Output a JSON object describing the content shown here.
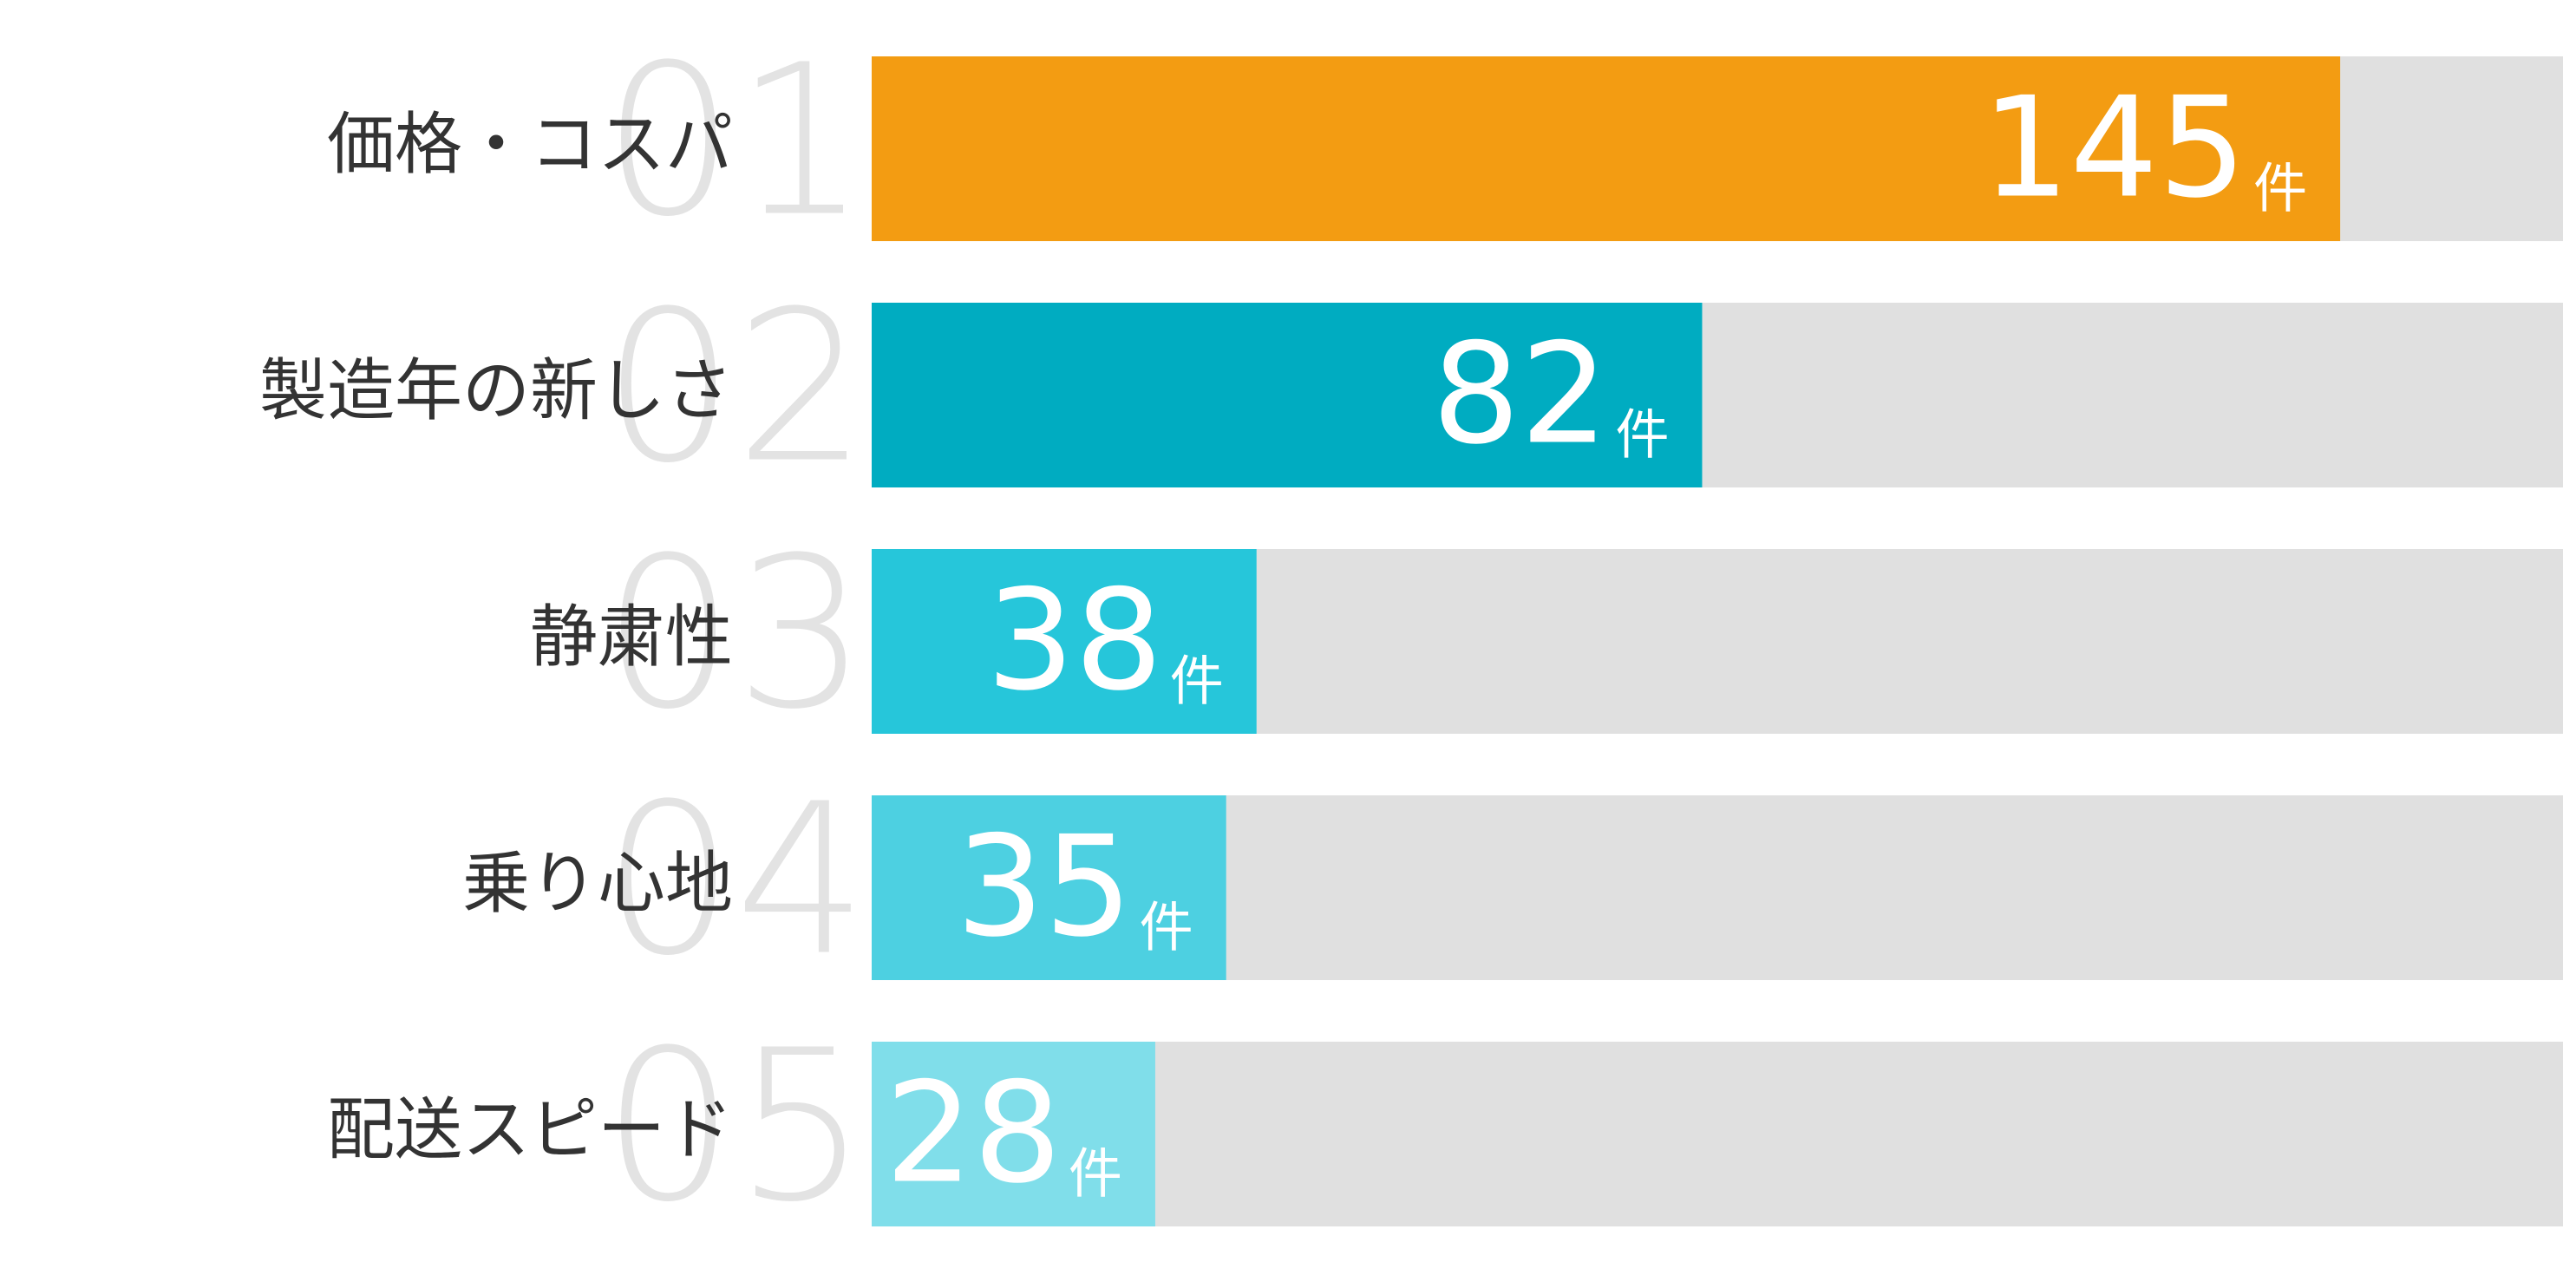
{
  "chart_data": {
    "type": "ranked-bar",
    "categories": [
      "価格・コスパ",
      "製造年の新しさ",
      "静粛性",
      "乗り心地",
      "配送スピード"
    ],
    "ranks": [
      "01",
      "02",
      "03",
      "04",
      "05"
    ],
    "values": [
      145,
      82,
      38,
      35,
      28
    ],
    "unit": "件",
    "colors": [
      "#f39c12",
      "#00acc1",
      "#26c6da",
      "#4dd0e1",
      "#80deea"
    ],
    "track_color": "#e0e0e0",
    "xlim": [
      0,
      167
    ]
  }
}
